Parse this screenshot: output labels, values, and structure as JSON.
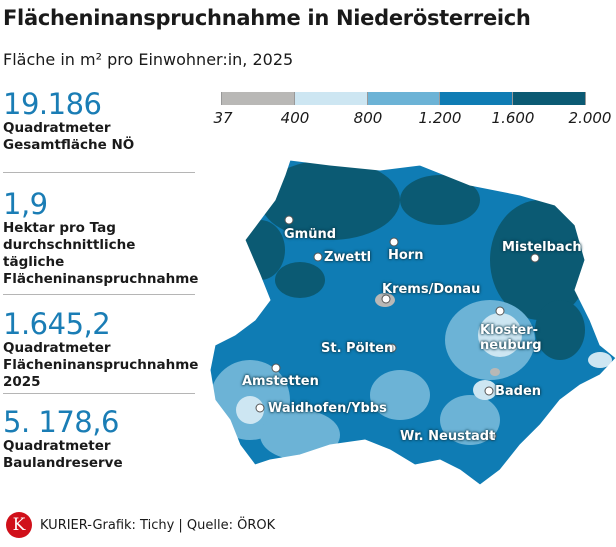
{
  "title": "Flächeninanspruchnahme in Niederösterreich",
  "subtitle": "Fläche in m² pro Einwohner:in, 2025",
  "stats": [
    {
      "value": "19.186",
      "label": "Quadratmeter Gesamtfläche NÖ"
    },
    {
      "value": "1,9",
      "label": "Hektar pro Tag durchschnittliche tägliche Flächeninanspruchnahme"
    },
    {
      "value": "1.645,2",
      "label": "Quadratmeter Flächeninanspruchnahme 2025"
    },
    {
      "value": "5. 178,6",
      "label": "Quadratmeter Baulandreserve"
    }
  ],
  "legend": {
    "ticks": [
      "37",
      "400",
      "800",
      "1.200",
      "1.600",
      "2.000"
    ],
    "colors": [
      "#b9b8b6",
      "#cde6f2",
      "#6cb3d6",
      "#0f7cb4",
      "#0b5a73"
    ]
  },
  "cities": [
    "Gmünd",
    "Zwettl",
    "Horn",
    "Mistelbach",
    "Krems/Donau",
    "Kloster-neuburg",
    "St. Pölten",
    "Amstetten",
    "Waidhofen/Ybbs",
    "Baden",
    "Wr. Neustadt"
  ],
  "footer": {
    "logo": "K",
    "credit": "KURIER-Grafik: Tichy | Quelle:  ÖROK"
  }
}
